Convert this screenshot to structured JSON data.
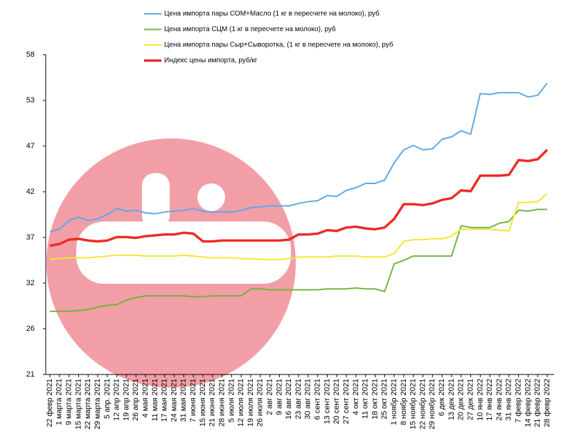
{
  "chart_data": {
    "type": "line",
    "categories": [
      "22 февр 2021",
      "1 марта 2021",
      "9 марта 2021",
      "15 марта 2021",
      "22 марта 2021",
      "29 марта 2021",
      "5 апр. 2021",
      "12 апр 2021",
      "19 апр 2021",
      "26 апр 2021",
      "4 мая 2021",
      "11 мая 2021",
      "17 мая 2021",
      "24 мая 2021",
      "31 мая 2021",
      "7 июня 2021",
      "15 июня 2021",
      "21 июня 2021",
      "28 июня 2021",
      "5 июля 2021",
      "12 июля 2021",
      "19 июля 2021",
      "26 июля 2021",
      "2 авг 2021",
      "9 авг 2021",
      "16 авг 2021",
      "23 авг 2021",
      "30 авг 2021",
      "6 сент 2021",
      "13 сент 2021",
      "20 сент 2021",
      "27 сент 2021",
      "4 окт 2021",
      "11 окт 2021",
      "18 окт 2021",
      "25 окт 2021",
      "1 ноябр 2021",
      "8 ноябр 2021",
      "15 ноябр 2021",
      "22 ноябр 2021",
      "29 ноябр 2021",
      "6 дек 2021",
      "13 дек 2021",
      "20 дек 2021",
      "27 дек 2021",
      "10 янв 2022",
      "17 янв 2022",
      "24 янв 2022",
      "31 янв 2022",
      "7 февр 2022",
      "14 февр 2022",
      "21 февр 2022",
      "28 февр 2022"
    ],
    "series": [
      {
        "name": "Цена  импорта пары СОМ+Масло  (1 кг в пересчете на молоко), руб",
        "color": "#5aa9e6",
        "width": 2,
        "values": [
          37.5,
          37.8,
          38.8,
          39.2,
          38.8,
          39.0,
          39.5,
          40.2,
          39.9,
          40.0,
          39.7,
          39.6,
          39.8,
          39.9,
          40.0,
          40.2,
          39.9,
          39.8,
          39.8,
          39.8,
          40.0,
          40.3,
          40.4,
          40.5,
          40.5,
          40.5,
          40.8,
          41.0,
          41.1,
          41.7,
          41.6,
          42.3,
          42.6,
          43.1,
          43.1,
          43.5,
          45.5,
          47.0,
          47.5,
          47.0,
          47.1,
          48.2,
          48.5,
          49.2,
          48.8,
          53.5,
          53.4,
          53.6,
          53.6,
          53.6,
          53.1,
          53.3,
          54.7
        ]
      },
      {
        "name": "Цена  импорта СЦМ  (1 кг в пересчете на молоко), руб",
        "color": "#70b43c",
        "width": 2,
        "values": [
          28.3,
          28.3,
          28.3,
          28.4,
          28.5,
          28.8,
          29.0,
          29.1,
          29.6,
          29.9,
          30.1,
          30.1,
          30.1,
          30.1,
          30.1,
          30.0,
          30.0,
          30.1,
          30.1,
          30.1,
          30.1,
          30.9,
          30.9,
          30.8,
          30.8,
          30.8,
          30.8,
          30.8,
          30.8,
          30.9,
          30.9,
          30.9,
          31.0,
          30.9,
          30.9,
          30.6,
          33.8,
          34.2,
          34.7,
          34.7,
          34.7,
          34.7,
          34.7,
          38.2,
          38.0,
          38.0,
          38.0,
          38.5,
          38.7,
          40.0,
          39.9,
          40.1,
          40.1
        ]
      },
      {
        "name": "Цена  импорта пары Сыр+Сыворотка,  (1 кг в пересчете на молоко), руб",
        "color": "#f5e532",
        "width": 2,
        "values": [
          34.3,
          34.4,
          34.5,
          34.5,
          34.5,
          34.6,
          34.7,
          34.8,
          34.8,
          34.8,
          34.7,
          34.7,
          34.7,
          34.7,
          34.8,
          34.7,
          34.6,
          34.5,
          34.5,
          34.5,
          34.4,
          34.4,
          34.3,
          34.3,
          34.3,
          34.4,
          34.6,
          34.6,
          34.6,
          34.6,
          34.7,
          34.7,
          34.7,
          34.6,
          34.6,
          34.6,
          35.0,
          36.4,
          36.6,
          36.6,
          36.7,
          36.7,
          37.0,
          37.8,
          37.8,
          37.8,
          37.8,
          37.7,
          37.6,
          40.9,
          40.9,
          41.0,
          41.9
        ]
      },
      {
        "name": "Индекс цены импорта, руб/кг",
        "color": "#ee2a24",
        "width": 3.5,
        "values": [
          35.9,
          36.1,
          36.6,
          36.7,
          36.5,
          36.4,
          36.5,
          36.9,
          36.9,
          36.8,
          37.0,
          37.1,
          37.2,
          37.2,
          37.4,
          37.3,
          36.4,
          36.4,
          36.5,
          36.5,
          36.5,
          36.5,
          36.5,
          36.5,
          36.5,
          36.6,
          37.2,
          37.2,
          37.3,
          37.7,
          37.6,
          38.0,
          38.1,
          37.9,
          37.8,
          38.0,
          39.0,
          40.7,
          40.7,
          40.6,
          40.8,
          41.2,
          41.4,
          42.3,
          42.2,
          44.0,
          44.0,
          44.0,
          44.1,
          45.8,
          45.7,
          45.9,
          47.0
        ]
      }
    ],
    "ylim": [
      21,
      58
    ],
    "yticks": [
      21,
      {
        "value": 26.29,
        "label": "26"
      },
      {
        "value": 31.57,
        "label": "32"
      },
      {
        "value": 36.86,
        "label": "37"
      },
      {
        "value": 42.14,
        "label": "42"
      },
      {
        "value": 47.43,
        "label": "47"
      },
      {
        "value": 52.71,
        "label": "53"
      },
      58
    ],
    "grid": false
  }
}
